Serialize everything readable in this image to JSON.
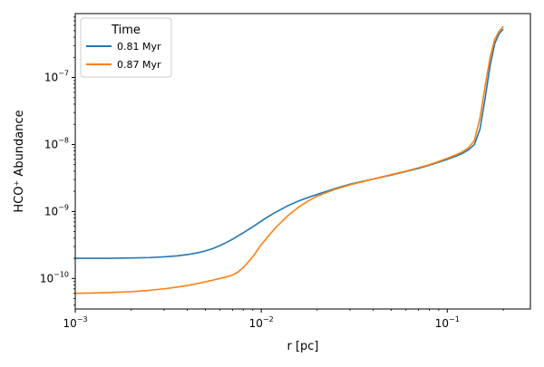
{
  "chart_data": {
    "type": "line",
    "title": "",
    "xlabel": "r [pc]",
    "ylabel": "HCO⁺ Abundance",
    "xscale": "log",
    "yscale": "log",
    "xlim": [
      0.001,
      0.28
    ],
    "ylim": [
      3.5e-11,
      9e-07
    ],
    "grid": false,
    "legend": {
      "title": "Time",
      "position": "top-left"
    },
    "x_ticks": [
      {
        "value": 0.001,
        "base": "10",
        "exp": "−3"
      },
      {
        "value": 0.01,
        "base": "10",
        "exp": "−2"
      },
      {
        "value": 0.1,
        "base": "10",
        "exp": "−1"
      }
    ],
    "y_ticks": [
      {
        "value": 1e-10,
        "base": "10",
        "exp": "−10"
      },
      {
        "value": 1e-09,
        "base": "10",
        "exp": "−9"
      },
      {
        "value": 1e-08,
        "base": "10",
        "exp": "−8"
      },
      {
        "value": 1e-07,
        "base": "10",
        "exp": "−7"
      }
    ],
    "series": [
      {
        "name": "0.81 Myr",
        "color": "#1f77b4",
        "x": [
          0.001,
          0.0012,
          0.0015,
          0.002,
          0.0025,
          0.003,
          0.0035,
          0.004,
          0.0045,
          0.005,
          0.0055,
          0.006,
          0.0065,
          0.007,
          0.008,
          0.009,
          0.01,
          0.011,
          0.012,
          0.014,
          0.016,
          0.018,
          0.02,
          0.025,
          0.03,
          0.04,
          0.05,
          0.06,
          0.07,
          0.08,
          0.09,
          0.1,
          0.11,
          0.12,
          0.13,
          0.14,
          0.15,
          0.16,
          0.17,
          0.18,
          0.19,
          0.2
        ],
        "y": [
          2e-10,
          2e-10,
          2e-10,
          2.02e-10,
          2.05e-10,
          2.1e-10,
          2.17e-10,
          2.27e-10,
          2.4e-10,
          2.57e-10,
          2.8e-10,
          3.1e-10,
          3.45e-10,
          3.85e-10,
          4.8e-10,
          5.9e-10,
          7.2e-10,
          8.5e-10,
          9.8e-10,
          1.23e-09,
          1.45e-09,
          1.63e-09,
          1.8e-09,
          2.2e-09,
          2.55e-09,
          3.05e-09,
          3.5e-09,
          3.95e-09,
          4.4e-09,
          4.9e-09,
          5.45e-09,
          6e-09,
          6.6e-09,
          7.3e-09,
          8.3e-09,
          1e-08,
          1.7e-08,
          5e-08,
          1.5e-07,
          3.2e-07,
          4.5e-07,
          5.3e-07
        ]
      },
      {
        "name": "0.87 Myr",
        "color": "#ff7f0e",
        "x": [
          0.001,
          0.0012,
          0.0015,
          0.002,
          0.0025,
          0.003,
          0.0035,
          0.004,
          0.0045,
          0.005,
          0.0055,
          0.006,
          0.0065,
          0.007,
          0.0075,
          0.008,
          0.009,
          0.01,
          0.011,
          0.012,
          0.014,
          0.016,
          0.018,
          0.02,
          0.025,
          0.03,
          0.04,
          0.05,
          0.06,
          0.07,
          0.08,
          0.09,
          0.1,
          0.11,
          0.12,
          0.13,
          0.14,
          0.15,
          0.16,
          0.17,
          0.18,
          0.19,
          0.2
        ],
        "y": [
          6e-11,
          6.05e-11,
          6.15e-11,
          6.35e-11,
          6.65e-11,
          7e-11,
          7.4e-11,
          7.85e-11,
          8.35e-11,
          8.9e-11,
          9.45e-11,
          1e-10,
          1.06e-10,
          1.12e-10,
          1.25e-10,
          1.45e-10,
          2.1e-10,
          3.2e-10,
          4.4e-10,
          5.8e-10,
          8.8e-10,
          1.18e-09,
          1.45e-09,
          1.7e-09,
          2.15e-09,
          2.5e-09,
          3.05e-09,
          3.55e-09,
          4e-09,
          4.5e-09,
          5e-09,
          5.6e-09,
          6.2e-09,
          6.9e-09,
          7.7e-09,
          8.9e-09,
          1.15e-08,
          2.5e-08,
          7.5e-08,
          2e-07,
          3.7e-07,
          4.9e-07,
          5.8e-07
        ]
      }
    ]
  }
}
